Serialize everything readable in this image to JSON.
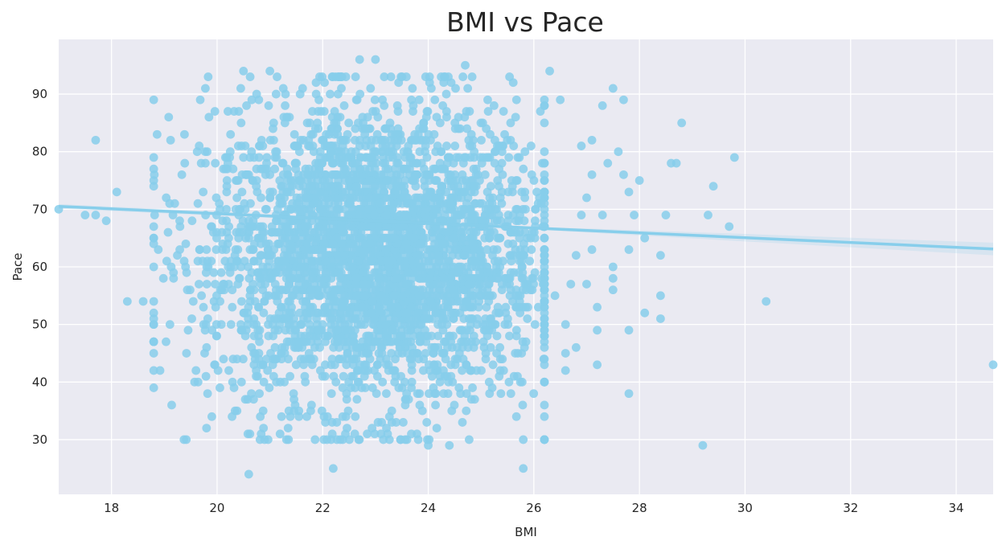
{
  "chart_data": {
    "type": "scatter",
    "title": "BMI vs Pace",
    "xlabel": "BMI",
    "ylabel": "Pace",
    "xlim": [
      17.0,
      34.7
    ],
    "ylim": [
      20.5,
      99.5
    ],
    "xticks": [
      18,
      20,
      22,
      24,
      26,
      28,
      30,
      32,
      34
    ],
    "yticks": [
      30,
      40,
      50,
      60,
      70,
      80,
      90
    ],
    "grid": true,
    "background_color": "#eaeaf2",
    "point_color": "#87ceeb",
    "line_color": "#87ceeb",
    "regression": {
      "x": [
        17.0,
        34.7
      ],
      "y": [
        70.5,
        63.1
      ]
    },
    "cluster": {
      "center_x": 23.0,
      "center_y": 62,
      "x_std": 1.6,
      "y_std": 13,
      "count": 3500
    },
    "outliers": [
      {
        "x": 17.7,
        "y": 82
      },
      {
        "x": 17.0,
        "y": 70
      },
      {
        "x": 17.5,
        "y": 69
      },
      {
        "x": 17.7,
        "y": 69
      },
      {
        "x": 17.9,
        "y": 68
      },
      {
        "x": 18.1,
        "y": 73
      },
      {
        "x": 18.3,
        "y": 54
      },
      {
        "x": 18.6,
        "y": 54
      },
      {
        "x": 18.8,
        "y": 52
      },
      {
        "x": 19.6,
        "y": 42
      },
      {
        "x": 19.8,
        "y": 32
      },
      {
        "x": 19.9,
        "y": 34
      },
      {
        "x": 20.6,
        "y": 24
      },
      {
        "x": 20.9,
        "y": 30
      },
      {
        "x": 22.2,
        "y": 25
      },
      {
        "x": 24.0,
        "y": 29
      },
      {
        "x": 24.4,
        "y": 29
      },
      {
        "x": 25.8,
        "y": 25
      },
      {
        "x": 25.8,
        "y": 30
      },
      {
        "x": 20.5,
        "y": 94
      },
      {
        "x": 21.0,
        "y": 94
      },
      {
        "x": 22.7,
        "y": 96
      },
      {
        "x": 23.0,
        "y": 96
      },
      {
        "x": 24.7,
        "y": 95
      },
      {
        "x": 26.3,
        "y": 94
      },
      {
        "x": 26.5,
        "y": 89
      },
      {
        "x": 26.9,
        "y": 81
      },
      {
        "x": 27.1,
        "y": 82
      },
      {
        "x": 27.3,
        "y": 88
      },
      {
        "x": 27.5,
        "y": 91
      },
      {
        "x": 27.6,
        "y": 80
      },
      {
        "x": 27.7,
        "y": 89
      },
      {
        "x": 27.4,
        "y": 78
      },
      {
        "x": 27.8,
        "y": 73
      },
      {
        "x": 27.7,
        "y": 76
      },
      {
        "x": 27.9,
        "y": 69
      },
      {
        "x": 28.0,
        "y": 75
      },
      {
        "x": 28.1,
        "y": 65
      },
      {
        "x": 27.8,
        "y": 63
      },
      {
        "x": 27.5,
        "y": 56
      },
      {
        "x": 27.5,
        "y": 58
      },
      {
        "x": 27.5,
        "y": 60
      },
      {
        "x": 27.2,
        "y": 53
      },
      {
        "x": 27.2,
        "y": 49
      },
      {
        "x": 27.2,
        "y": 43
      },
      {
        "x": 27.8,
        "y": 49
      },
      {
        "x": 27.8,
        "y": 38
      },
      {
        "x": 28.1,
        "y": 52
      },
      {
        "x": 28.4,
        "y": 62
      },
      {
        "x": 28.4,
        "y": 55
      },
      {
        "x": 28.4,
        "y": 51
      },
      {
        "x": 28.5,
        "y": 69
      },
      {
        "x": 28.6,
        "y": 78
      },
      {
        "x": 28.7,
        "y": 78
      },
      {
        "x": 28.8,
        "y": 85
      },
      {
        "x": 29.2,
        "y": 29
      },
      {
        "x": 29.3,
        "y": 69
      },
      {
        "x": 29.4,
        "y": 74
      },
      {
        "x": 29.7,
        "y": 67
      },
      {
        "x": 29.8,
        "y": 79
      },
      {
        "x": 30.4,
        "y": 54
      },
      {
        "x": 34.7,
        "y": 43
      },
      {
        "x": 26.8,
        "y": 46
      },
      {
        "x": 26.6,
        "y": 42
      },
      {
        "x": 26.6,
        "y": 45
      },
      {
        "x": 26.6,
        "y": 50
      },
      {
        "x": 26.8,
        "y": 62
      },
      {
        "x": 26.9,
        "y": 69
      },
      {
        "x": 27.0,
        "y": 72
      },
      {
        "x": 27.1,
        "y": 76
      },
      {
        "x": 27.3,
        "y": 69
      },
      {
        "x": 27.1,
        "y": 63
      },
      {
        "x": 27.0,
        "y": 57
      },
      {
        "x": 26.7,
        "y": 57
      },
      {
        "x": 26.4,
        "y": 55
      }
    ]
  }
}
